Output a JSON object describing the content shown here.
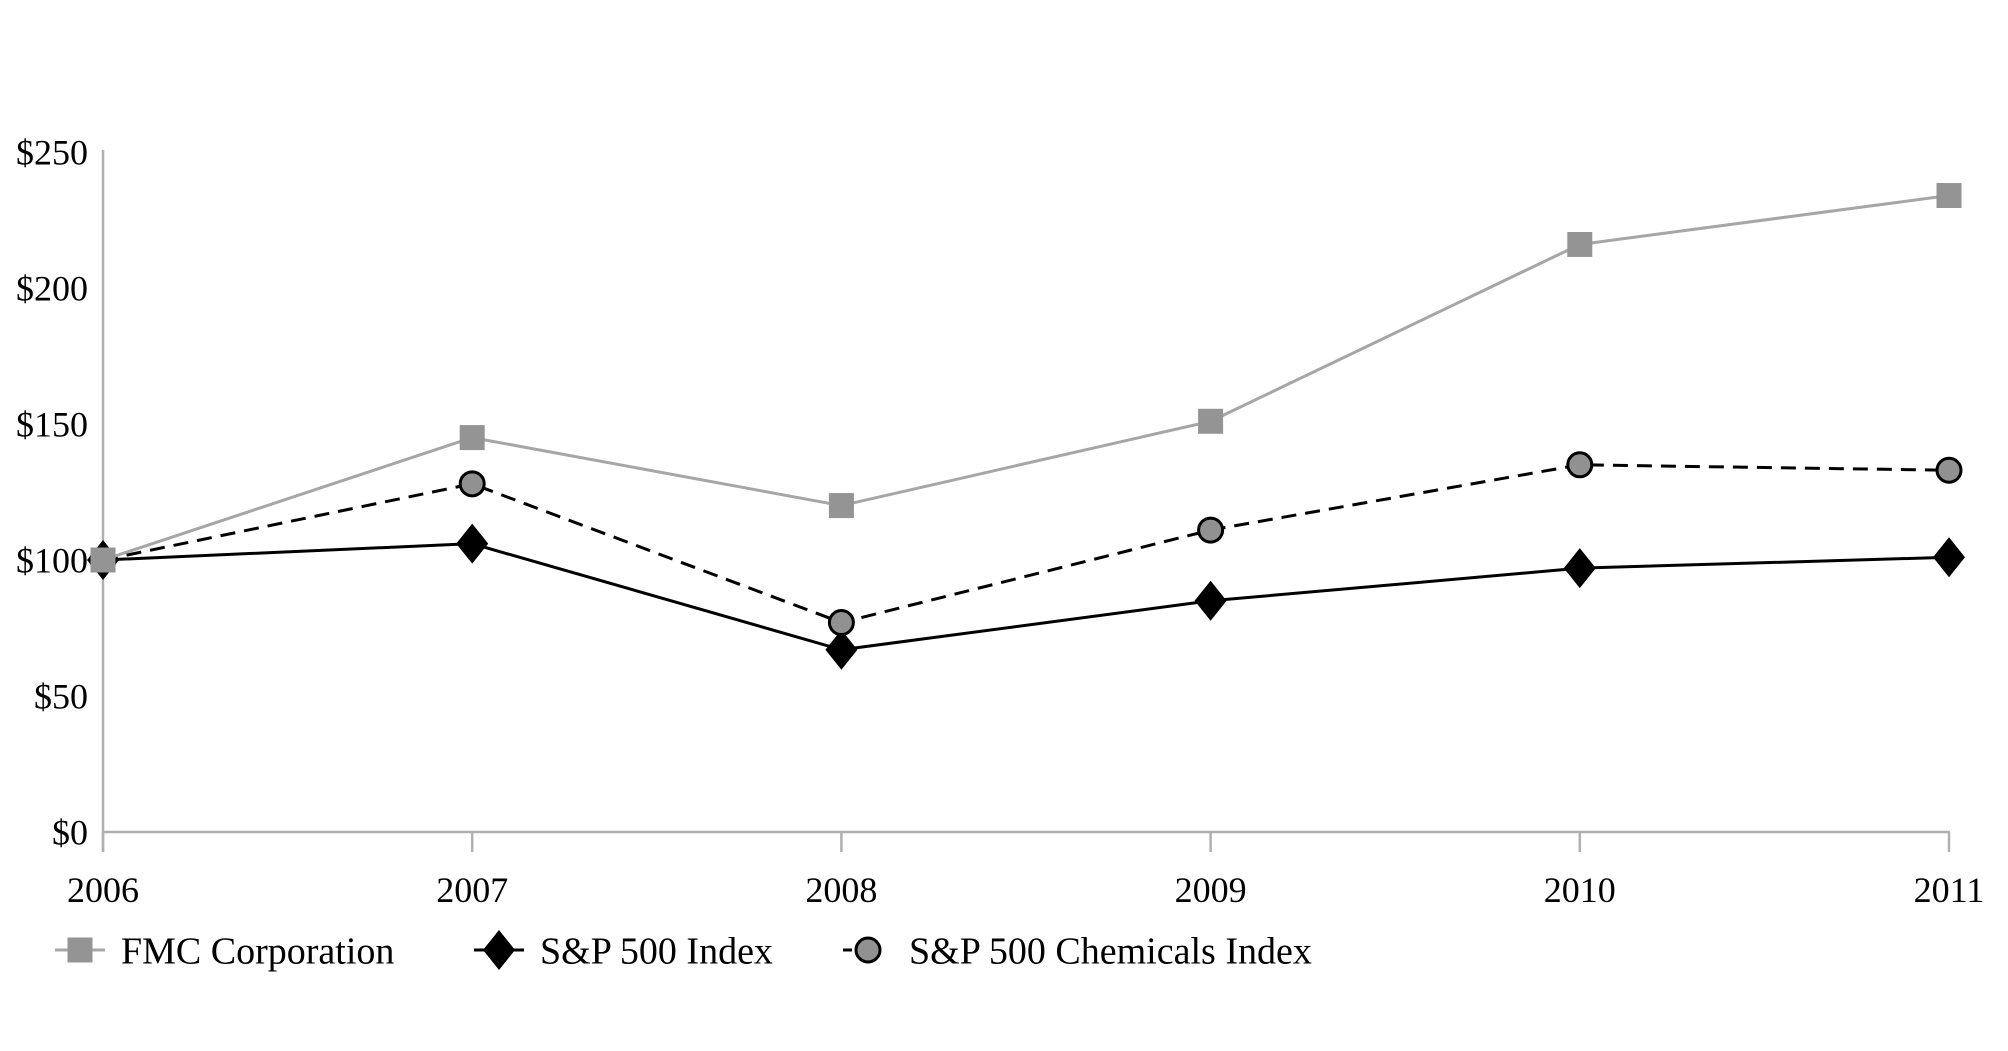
{
  "chart_data": {
    "type": "line",
    "title": "",
    "xlabel": "",
    "ylabel": "",
    "categories": [
      "2006",
      "2007",
      "2008",
      "2009",
      "2010",
      "2011"
    ],
    "series": [
      {
        "name": "FMC Corporation",
        "values": [
          100,
          145,
          120,
          151,
          216,
          234
        ],
        "line_color": "#a6a6a6",
        "line_style": "solid",
        "marker": "square",
        "marker_fill": "#949494",
        "marker_stroke": "none",
        "z_index": 3
      },
      {
        "name": "S&P 500 Index",
        "values": [
          100,
          106,
          67,
          85,
          97,
          101
        ],
        "line_color": "#000000",
        "line_style": "solid",
        "marker": "diamond",
        "marker_fill": "#000000",
        "marker_stroke": "none",
        "z_index": 1
      },
      {
        "name": "S&P 500 Chemicals Index",
        "values": [
          100,
          128,
          77,
          111,
          135,
          133
        ],
        "line_color": "#000000",
        "line_style": "dashed",
        "marker": "circle",
        "marker_fill": "#919191",
        "marker_stroke": "#000000",
        "z_index": 2
      }
    ],
    "ylim": [
      0,
      250
    ],
    "ytick_step": 50,
    "ytick_labels": [
      "$0",
      "$50",
      "$100",
      "$150",
      "$200",
      "$250"
    ],
    "currency_prefix": "$",
    "grid": false,
    "legend_position": "bottom-left",
    "axis_color": "#b0b0b0"
  }
}
